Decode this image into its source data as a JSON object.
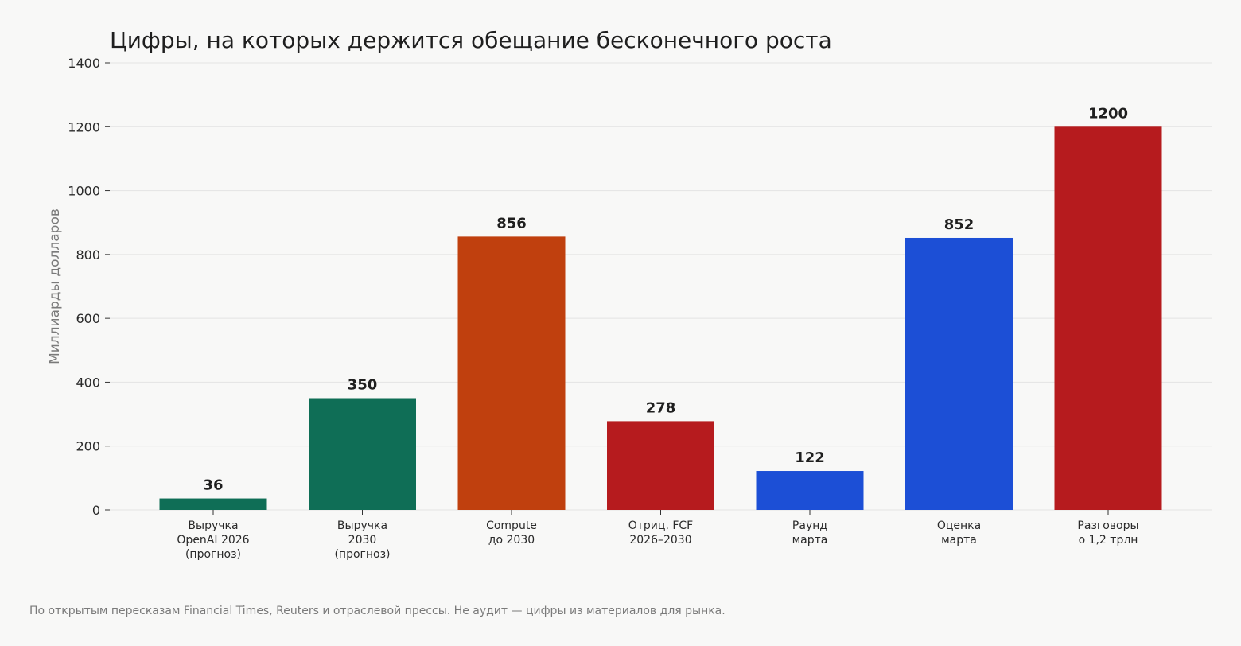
{
  "chart_data": {
    "type": "bar",
    "title": "Цифры, на которых держится обещание бесконечного роста",
    "ylabel": "Миллиарды долларов",
    "xlabel": "",
    "ylim": [
      0,
      1400
    ],
    "yticks": [
      0,
      200,
      400,
      600,
      800,
      1000,
      1200,
      1400
    ],
    "grid": true,
    "categories": [
      [
        "Выручка",
        "OpenAI 2026",
        "(прогноз)"
      ],
      [
        "Выручка",
        "2030",
        "(прогноз)"
      ],
      [
        "Compute",
        "до 2030"
      ],
      [
        "Отриц. FCF",
        "2026–2030"
      ],
      [
        "Раунд",
        "марта"
      ],
      [
        "Оценка",
        "марта"
      ],
      [
        "Разговоры",
        "о 1,2 трлн"
      ]
    ],
    "values": [
      36,
      350,
      856,
      278,
      122,
      852,
      1200
    ],
    "colors": [
      "#0f6e56",
      "#0f6e56",
      "#c0400e",
      "#b61b1e",
      "#1c4fd6",
      "#1c4fd6",
      "#b61b1e"
    ]
  },
  "footnote": "По открытым пересказам Financial Times, Reuters и отраслевой прессы. Не аудит — цифры из материалов для рынка."
}
